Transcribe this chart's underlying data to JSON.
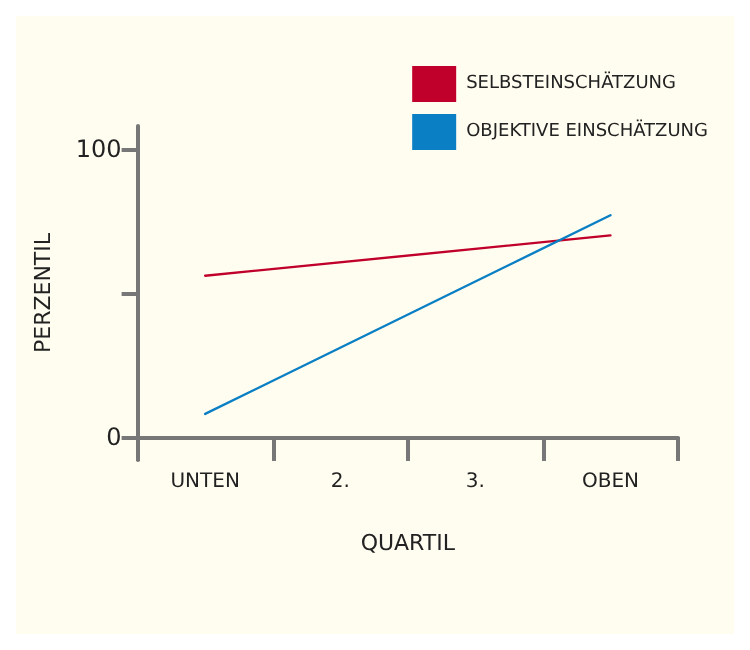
{
  "chart_data": {
    "type": "line",
    "xlabel": "QUARTIL",
    "ylabel": "PERZENTIL",
    "categories": [
      "UNTEN",
      "2.",
      "3.",
      "OBEN"
    ],
    "series": [
      {
        "name": "SELBSTEINSCHÄTZUNG",
        "color": "#c0002a",
        "values": [
          56,
          null,
          null,
          70
        ]
      },
      {
        "name": "OBJEKTIVE EINSCHÄTZUNG",
        "color": "#0a7fc4",
        "values": [
          8,
          null,
          null,
          77
        ]
      }
    ],
    "ylim": [
      -8,
      108
    ],
    "yticks": [
      0,
      {
        "value": 50,
        "label": null
      },
      100
    ],
    "grid": false,
    "legend": "top right",
    "marker": "none",
    "line_style": "solid"
  }
}
